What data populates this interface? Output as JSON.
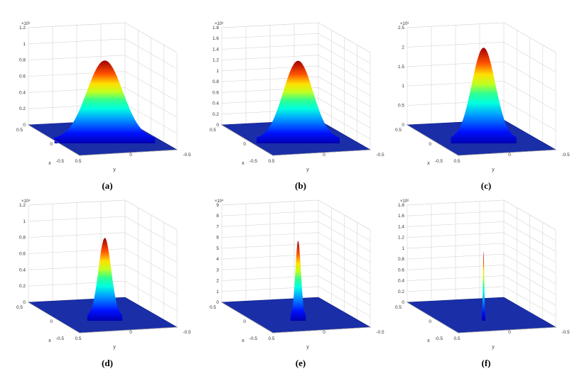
{
  "chart_data": [
    {
      "type": "surface",
      "panel": "(a)",
      "title": "",
      "exponent": "×10³",
      "zticks": [
        "0",
        "0.2",
        "0.4",
        "0.6",
        "0.8",
        "1",
        "1.2"
      ],
      "zlim": [
        0,
        1.2
      ],
      "peak": 0.97,
      "width": 0.23,
      "xlabel": "x",
      "ylabel": "y",
      "xticks": [
        "0.5",
        "0",
        "-0.5"
      ],
      "yticks": [
        "0.5",
        "0",
        "-0.5"
      ]
    },
    {
      "type": "surface",
      "panel": "(b)",
      "title": "",
      "exponent": "×10³",
      "zticks": [
        "0",
        "0.2",
        "0.4",
        "0.6",
        "0.8",
        "1",
        "1.2",
        "1.4",
        "1.6",
        "1.8"
      ],
      "zlim": [
        0,
        1.8
      ],
      "peak": 1.45,
      "width": 0.19,
      "xlabel": "x",
      "ylabel": "y",
      "xticks": [
        "0.5",
        "0",
        "-0.5"
      ],
      "yticks": [
        "0.5",
        "0",
        "-0.5"
      ]
    },
    {
      "type": "surface",
      "panel": "(c)",
      "title": "",
      "exponent": "×10³",
      "zticks": [
        "0",
        "0.5",
        "1",
        "1.5",
        "2",
        "2.5"
      ],
      "zlim": [
        0,
        2.5
      ],
      "peak": 2.35,
      "width": 0.15,
      "xlabel": "x",
      "ylabel": "y",
      "xticks": [
        "0.5",
        "0",
        "-0.5"
      ],
      "yticks": [
        "0.5",
        "0",
        "-0.5"
      ]
    },
    {
      "type": "surface",
      "panel": "(d)",
      "title": "",
      "exponent": "×10⁴",
      "zticks": [
        "0",
        "0.2",
        "0.4",
        "0.6",
        "0.8",
        "1",
        "1.2"
      ],
      "zlim": [
        0,
        1.2
      ],
      "peak": 0.97,
      "width": 0.08,
      "xlabel": "x",
      "ylabel": "y",
      "xticks": [
        "0.5",
        "0",
        "-0.5"
      ],
      "yticks": [
        "0.5",
        "0",
        "-0.5"
      ]
    },
    {
      "type": "surface",
      "panel": "(e)",
      "title": "",
      "exponent": "×10⁴",
      "zticks": [
        "0",
        "1",
        "2",
        "3",
        "4",
        "5",
        "6",
        "7",
        "8",
        "9"
      ],
      "zlim": [
        0,
        9
      ],
      "peak": 7.0,
      "width": 0.035,
      "xlabel": "x",
      "ylabel": "y",
      "xticks": [
        "0.5",
        "0",
        "-0.5"
      ],
      "yticks": [
        "0.5",
        "0",
        "-0.5"
      ]
    },
    {
      "type": "surface",
      "panel": "(f)",
      "title": "",
      "exponent": "×10⁶",
      "zticks": [
        "0",
        "0.2",
        "0.4",
        "0.6",
        "0.8",
        "1",
        "1.2",
        "1.4",
        "1.6",
        "1.8"
      ],
      "zlim": [
        0,
        1.8
      ],
      "peak": 1.2,
      "width": 0.008,
      "xlabel": "x",
      "ylabel": "y",
      "xticks": [
        "0.5",
        "0",
        "-0.5"
      ],
      "yticks": [
        "0.5",
        "0",
        "-0.5"
      ]
    }
  ]
}
